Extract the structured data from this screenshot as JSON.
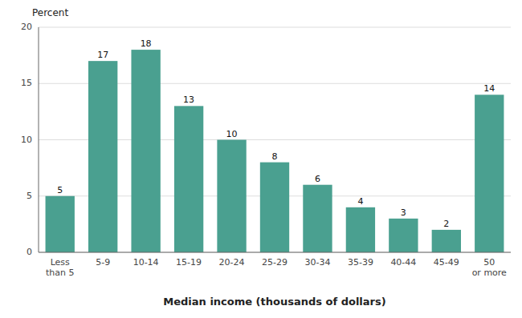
{
  "chart_data": {
    "type": "bar",
    "categories": [
      "Less\nthan 5",
      "5-9",
      "10-14",
      "15-19",
      "20-24",
      "25-29",
      "30-34",
      "35-39",
      "40-44",
      "45-49",
      "50\nor more"
    ],
    "values": [
      5,
      17,
      18,
      13,
      10,
      8,
      6,
      4,
      3,
      2,
      14
    ],
    "color": "#4aA090",
    "xlabel": "Median income (thousands of dollars)",
    "ylabel": "Percent",
    "ylim": [
      0,
      20
    ],
    "yticks": [
      0,
      5,
      10,
      15,
      20
    ],
    "grid": true,
    "data_labels": true
  }
}
